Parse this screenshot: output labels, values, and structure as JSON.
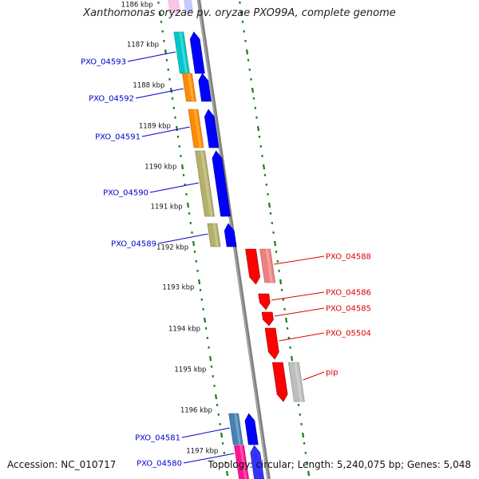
{
  "title": "Xanthomonas oryzae pv. oryzae PXO99A, complete genome",
  "footer": {
    "accession": "Accession: NC_010717",
    "summary": "Topology: circular; Length: 5,240,075 bp; Genes: 5,048"
  },
  "colors": {
    "backbone": "#808080",
    "tick": "#1a7a1a",
    "forward_label": "#0000cc",
    "reverse_label": "#dd0000"
  },
  "kbp_labels": [
    "1186 kbp",
    "1187 kbp",
    "1188 kbp",
    "1189 kbp",
    "1190 kbp",
    "1191 kbp",
    "1192 kbp",
    "1193 kbp",
    "1194 kbp",
    "1195 kbp",
    "1196 kbp",
    "1197 kbp"
  ],
  "forward_genes": [
    {
      "label": "PXO_04593",
      "cog_color": "#00c8c8"
    },
    {
      "label": "PXO_04592",
      "cog_color": "#ff8c00"
    },
    {
      "label": "PXO_04591",
      "cog_color": "#ff8c00"
    },
    {
      "label": "PXO_04590",
      "cog_color": "#b5b06a"
    },
    {
      "label": "PXO_04589",
      "cog_color": "#b5b06a"
    },
    {
      "label": "PXO_04581",
      "cog_color": "#4682b4"
    },
    {
      "label": "PXO_04580",
      "cog_color": "#ff1493"
    }
  ],
  "reverse_genes": [
    {
      "label": "PXO_04588",
      "cog_color": "#f08080"
    },
    {
      "label": "PXO_04586",
      "cog_color": ""
    },
    {
      "label": "PXO_04585",
      "cog_color": ""
    },
    {
      "label": "PXO_05504",
      "cog_color": ""
    },
    {
      "label": "pip",
      "cog_color": "#bebebe"
    }
  ]
}
